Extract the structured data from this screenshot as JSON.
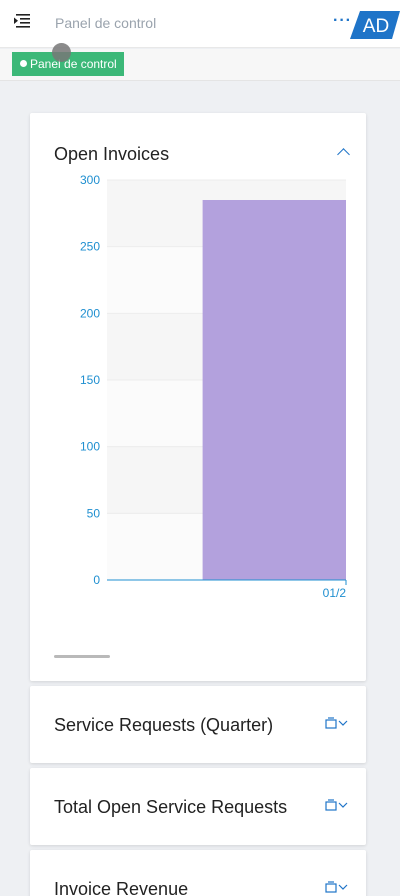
{
  "header": {
    "title": "Panel de control",
    "logo_text": "AD",
    "more_label": "···",
    "accent": "#1f74c8"
  },
  "breadcrumb": {
    "label": "Panel de control",
    "color": "#3cb878"
  },
  "cards": [
    {
      "title": "Open Invoices",
      "state": "expanded",
      "icon": "chevron-up-icon"
    },
    {
      "title": "Service Requests (Quarter)",
      "state": "collapsed",
      "icon": "card-actions-icon"
    },
    {
      "title": "Total Open Service Requests",
      "state": "collapsed",
      "icon": "card-actions-icon"
    },
    {
      "title": "Invoice Revenue",
      "state": "collapsed",
      "icon": "card-actions-icon"
    }
  ],
  "chart_data": {
    "type": "bar",
    "categories": [
      "01/2"
    ],
    "values": [
      285
    ],
    "ylim": [
      0,
      300
    ],
    "yticks": [
      "300",
      "250",
      "200",
      "150",
      "100",
      "50",
      "0"
    ],
    "bar_color": "#b3a1dd",
    "axis_color": "#1f8fd0",
    "title": "",
    "xlabel": "",
    "ylabel": ""
  }
}
